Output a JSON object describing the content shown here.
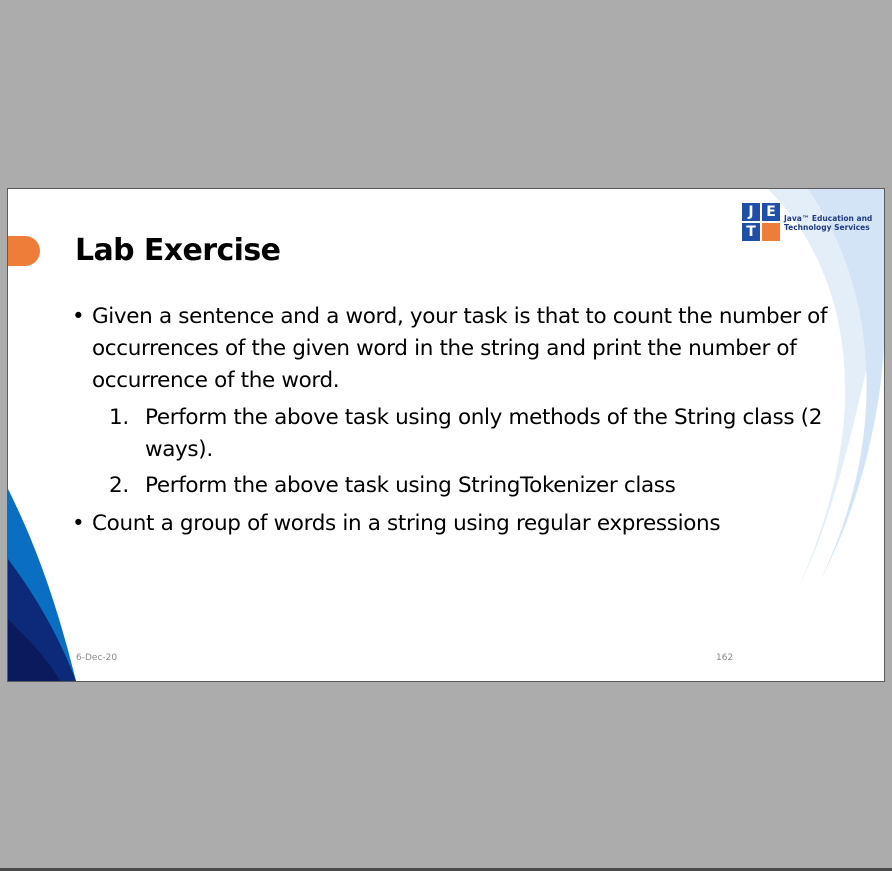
{
  "slide": {
    "title": "Lab Exercise",
    "logo": {
      "letters": [
        "J",
        "E",
        "T",
        ""
      ],
      "line1": "Java™ Education and",
      "line2": "Technology Services"
    },
    "bullets": [
      {
        "text": "Given a sentence and a word, your task is that to count the number of occurrences of the given word in the string and print the number of occurrence of the word.",
        "subitems": [
          {
            "num": "1.",
            "text": "Perform the above task using only methods of the String class (2 ways)."
          },
          {
            "num": "2.",
            "text": "Perform the above task using StringTokenizer class"
          }
        ]
      },
      {
        "text": "Count a group of words in a string using regular expressions"
      }
    ],
    "bullet_symbol": "•",
    "footer_date": "6-Dec-20",
    "page_number": "162"
  },
  "colors": {
    "viewer_background": "#acacac",
    "accent_orange": "#ef7d3a",
    "logo_blue": "#1f4fa8",
    "wave_dark_blue": "#0d1f6e",
    "wave_blue": "#0a6fc2",
    "wave_light_blue": "#dbe9f7"
  }
}
